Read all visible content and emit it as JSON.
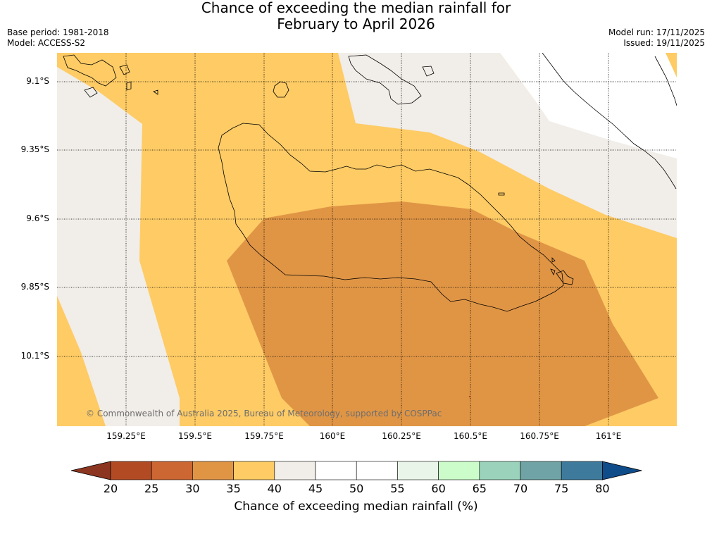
{
  "title": {
    "line1": "Chance of exceeding the median rainfall for",
    "line2": "February to April 2026"
  },
  "meta": {
    "base_period": "Base period: 1981-2018",
    "model": "Model: ACCESS-S2",
    "model_run": "Model run: 17/11/2025",
    "issued": "Issued: 19/11/2025"
  },
  "map": {
    "lat_ticks": [
      "9.1°S",
      "9.35°S",
      "9.6°S",
      "9.85°S",
      "10.1°S"
    ],
    "lon_ticks": [
      "159.25°E",
      "159.5°E",
      "159.75°E",
      "160°E",
      "160.25°E",
      "160.5°E",
      "160.75°E",
      "161°E"
    ],
    "copyright": "© Commonwealth of Australia 2025, Bureau of Meteorology, supported by COSPPac"
  },
  "colorbar": {
    "title": "Chance of exceeding median rainfall (%)",
    "labels": [
      "20",
      "25",
      "30",
      "35",
      "40",
      "45",
      "50",
      "55",
      "60",
      "65",
      "70",
      "75",
      "80"
    ],
    "colors": [
      "#b24a24",
      "#cc6633",
      "#e09545",
      "#fecb65",
      "#f1ede8",
      "#ffffff",
      "#ffffff",
      "#e9f5e9",
      "#cbfcc9",
      "#9ad2bc",
      "#6fa3a6",
      "#3d7a9c"
    ],
    "under_color": "#8c3520",
    "over_color": "#0f4c8a"
  },
  "colors": {
    "band_35_40": "#fecb65",
    "band_30_35": "#e09545",
    "band_40_45": "#f1ede8",
    "coastline": "#000000"
  }
}
